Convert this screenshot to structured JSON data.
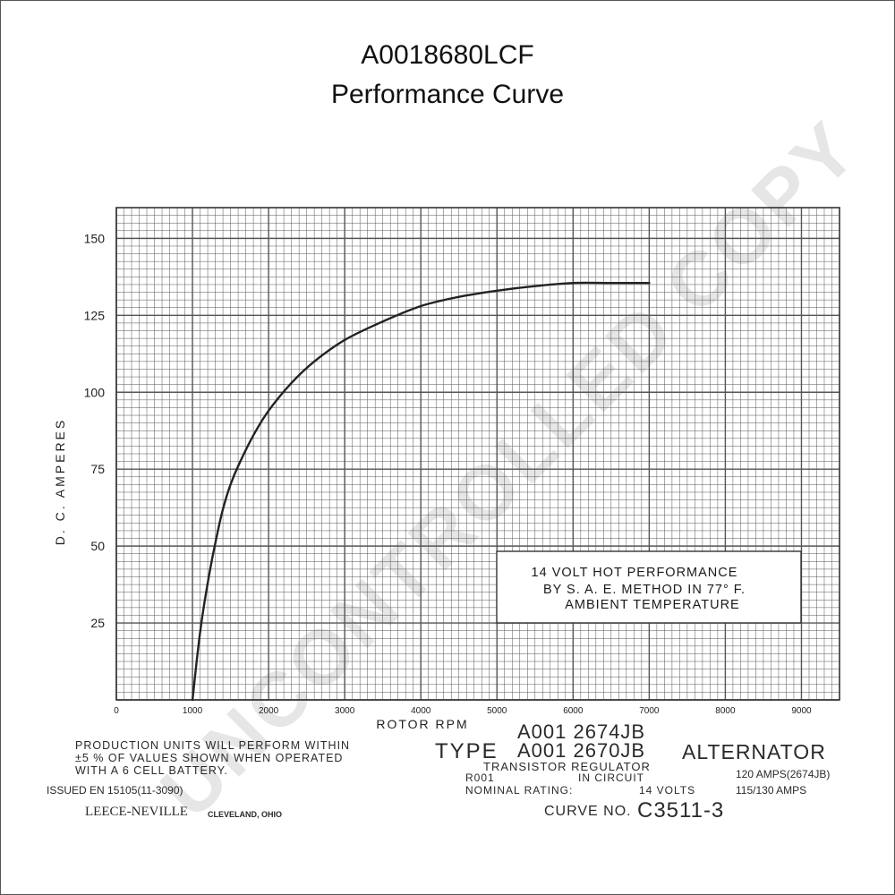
{
  "page": {
    "title": "A0018680LCF",
    "subtitle": "Performance Curve"
  },
  "chart_data": {
    "type": "line",
    "xlabel": "ROTOR RPM",
    "ylabel": "D. C. AMPERES",
    "xlim": [
      0,
      9500
    ],
    "ylim": [
      0,
      160
    ],
    "x_ticks": [
      "0",
      "1000",
      "2000",
      "3000",
      "4000",
      "5000",
      "6000",
      "7000",
      "8000",
      "9000"
    ],
    "y_ticks": [
      "25",
      "50",
      "75",
      "100",
      "125",
      "150"
    ],
    "grid": true,
    "series": [
      {
        "x": [
          1000,
          1100,
          1200,
          1300,
          1400,
          1500,
          1600,
          1800,
          2000,
          2300,
          2600,
          3000,
          3500,
          4000,
          4500,
          5000,
          5500,
          6000,
          6500,
          7000
        ],
        "y": [
          0,
          22,
          38,
          51,
          62,
          70,
          76,
          86,
          94,
          103,
          110,
          117,
          123,
          128,
          131,
          133,
          134.5,
          135.5,
          135.5,
          135.5
        ]
      }
    ],
    "annotation": [
      "14 VOLT HOT PERFORMANCE",
      "BY  S. A. E.   METHOD   IN  77° F.",
      "AMBIENT    TEMPERATURE"
    ]
  },
  "footer": {
    "production_note": [
      "PRODUCTION  UNITS WILL  PERFORM WITHIN",
      "±5 %  OF VALUES  SHOWN  WHEN  OPERATED",
      "WITH A   6    CELL BATTERY."
    ],
    "issued": "ISSUED EN 15105(11-3090)",
    "maker": "LEECE-NEVILLE",
    "maker_city": "CLEVELAND, OHIO",
    "model_a": "A001  2674JB",
    "type_label": "TYPE",
    "model_b": "A001  2670JB",
    "alternator": "ALTERNATOR",
    "regulator": "TRANSISTOR  REGULATOR",
    "regulator_code": "R001",
    "in_circuit": "IN CIRCUIT",
    "nominal_label": "NOMINAL RATING:",
    "volts": "14 VOLTS",
    "amps_a": "120 AMPS(2674JB)",
    "amps_b": "115/130 AMPS",
    "curve_label": "CURVE NO.",
    "curve_no": "C3511-3"
  },
  "watermark": "UNCONTROLLED COPY",
  "colors": {
    "grid": "#555555",
    "curve": "#222222",
    "watermark": "#e6e6e6"
  }
}
